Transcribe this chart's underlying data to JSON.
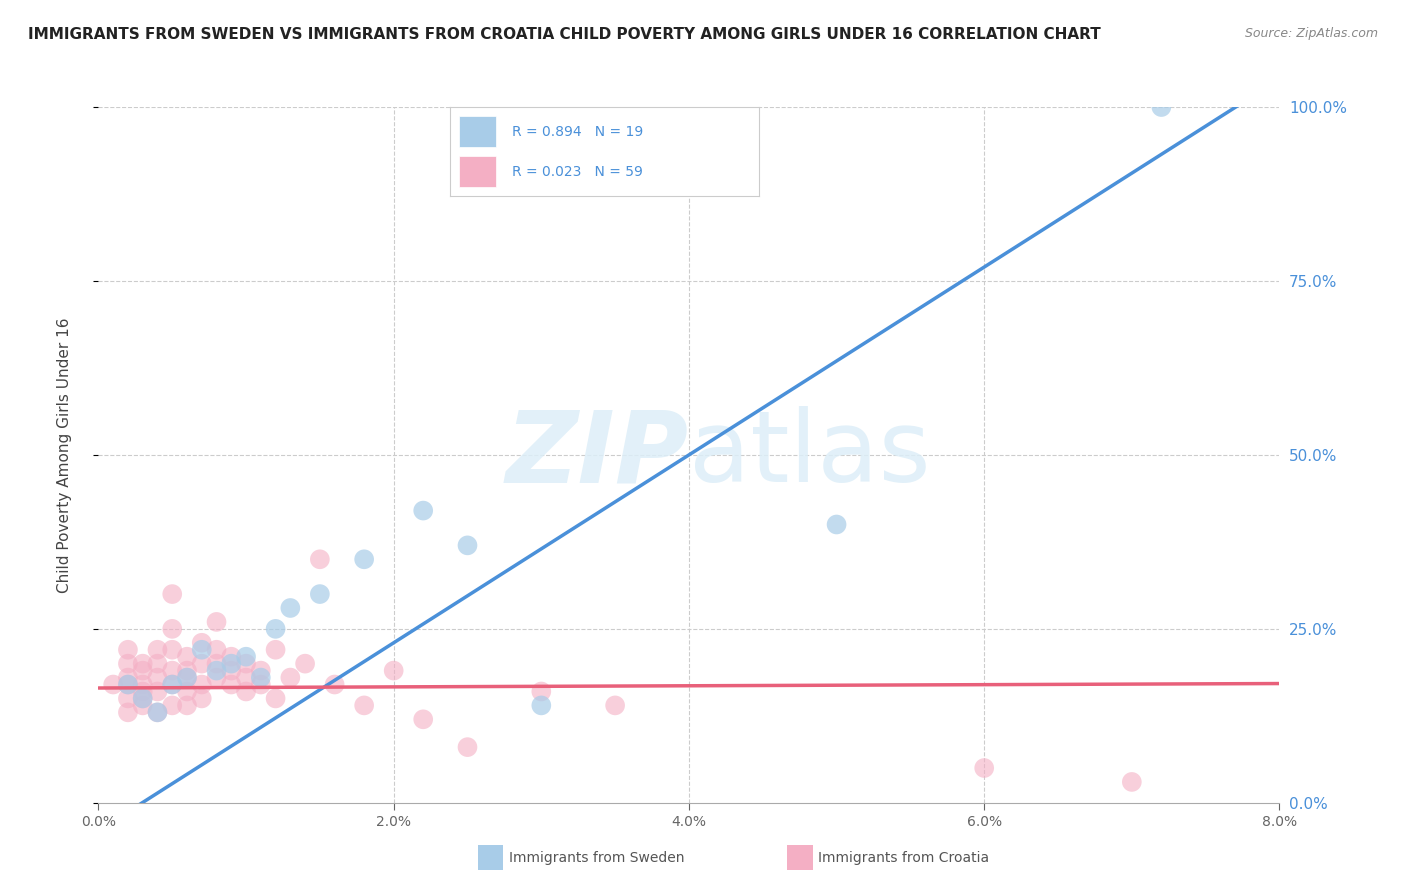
{
  "title": "IMMIGRANTS FROM SWEDEN VS IMMIGRANTS FROM CROATIA CHILD POVERTY AMONG GIRLS UNDER 16 CORRELATION CHART",
  "source": "Source: ZipAtlas.com",
  "xlabel_sweden": "Immigrants from Sweden",
  "xlabel_croatia": "Immigrants from Croatia",
  "ylabel": "Child Poverty Among Girls Under 16",
  "watermark_zip": "ZIP",
  "watermark_atlas": "atlas",
  "sweden_R": 0.894,
  "sweden_N": 19,
  "croatia_R": 0.023,
  "croatia_N": 59,
  "xlim": [
    0.0,
    0.08
  ],
  "ylim": [
    0.0,
    1.0
  ],
  "xticks": [
    0.0,
    0.02,
    0.04,
    0.06,
    0.08
  ],
  "yticks": [
    0.0,
    0.25,
    0.5,
    0.75,
    1.0
  ],
  "xtick_labels": [
    "0.0%",
    "2.0%",
    "4.0%",
    "6.0%",
    "8.0%"
  ],
  "ytick_labels": [
    "0.0%",
    "25.0%",
    "50.0%",
    "75.0%",
    "100.0%"
  ],
  "sweden_color": "#a8cce8",
  "croatia_color": "#f4afc4",
  "sweden_line_color": "#4a90d9",
  "croatia_line_color": "#e8607a",
  "title_fontsize": 11,
  "source_fontsize": 9,
  "sweden_points": [
    [
      0.002,
      0.17
    ],
    [
      0.003,
      0.15
    ],
    [
      0.004,
      0.13
    ],
    [
      0.005,
      0.17
    ],
    [
      0.006,
      0.18
    ],
    [
      0.007,
      0.22
    ],
    [
      0.008,
      0.19
    ],
    [
      0.009,
      0.2
    ],
    [
      0.01,
      0.21
    ],
    [
      0.011,
      0.18
    ],
    [
      0.012,
      0.25
    ],
    [
      0.013,
      0.28
    ],
    [
      0.015,
      0.3
    ],
    [
      0.018,
      0.35
    ],
    [
      0.022,
      0.42
    ],
    [
      0.025,
      0.37
    ],
    [
      0.03,
      0.14
    ],
    [
      0.05,
      0.4
    ],
    [
      0.072,
      1.0
    ]
  ],
  "croatia_points": [
    [
      0.001,
      0.17
    ],
    [
      0.002,
      0.2
    ],
    [
      0.002,
      0.22
    ],
    [
      0.002,
      0.17
    ],
    [
      0.002,
      0.15
    ],
    [
      0.002,
      0.13
    ],
    [
      0.002,
      0.18
    ],
    [
      0.003,
      0.19
    ],
    [
      0.003,
      0.16
    ],
    [
      0.003,
      0.14
    ],
    [
      0.003,
      0.2
    ],
    [
      0.003,
      0.17
    ],
    [
      0.003,
      0.15
    ],
    [
      0.004,
      0.22
    ],
    [
      0.004,
      0.18
    ],
    [
      0.004,
      0.16
    ],
    [
      0.004,
      0.13
    ],
    [
      0.004,
      0.2
    ],
    [
      0.005,
      0.25
    ],
    [
      0.005,
      0.19
    ],
    [
      0.005,
      0.17
    ],
    [
      0.005,
      0.14
    ],
    [
      0.005,
      0.22
    ],
    [
      0.005,
      0.3
    ],
    [
      0.006,
      0.18
    ],
    [
      0.006,
      0.16
    ],
    [
      0.006,
      0.21
    ],
    [
      0.006,
      0.14
    ],
    [
      0.006,
      0.19
    ],
    [
      0.007,
      0.23
    ],
    [
      0.007,
      0.2
    ],
    [
      0.007,
      0.17
    ],
    [
      0.007,
      0.15
    ],
    [
      0.008,
      0.22
    ],
    [
      0.008,
      0.18
    ],
    [
      0.008,
      0.2
    ],
    [
      0.008,
      0.26
    ],
    [
      0.009,
      0.19
    ],
    [
      0.009,
      0.17
    ],
    [
      0.009,
      0.21
    ],
    [
      0.01,
      0.18
    ],
    [
      0.01,
      0.16
    ],
    [
      0.01,
      0.2
    ],
    [
      0.011,
      0.17
    ],
    [
      0.011,
      0.19
    ],
    [
      0.012,
      0.22
    ],
    [
      0.012,
      0.15
    ],
    [
      0.013,
      0.18
    ],
    [
      0.014,
      0.2
    ],
    [
      0.015,
      0.35
    ],
    [
      0.016,
      0.17
    ],
    [
      0.018,
      0.14
    ],
    [
      0.02,
      0.19
    ],
    [
      0.022,
      0.12
    ],
    [
      0.025,
      0.08
    ],
    [
      0.03,
      0.16
    ],
    [
      0.035,
      0.14
    ],
    [
      0.06,
      0.05
    ],
    [
      0.07,
      0.03
    ]
  ],
  "sweden_line": [
    0.0,
    0.08,
    -0.02,
    1.0
  ],
  "croatia_line_y": [
    0.17,
    0.175
  ]
}
